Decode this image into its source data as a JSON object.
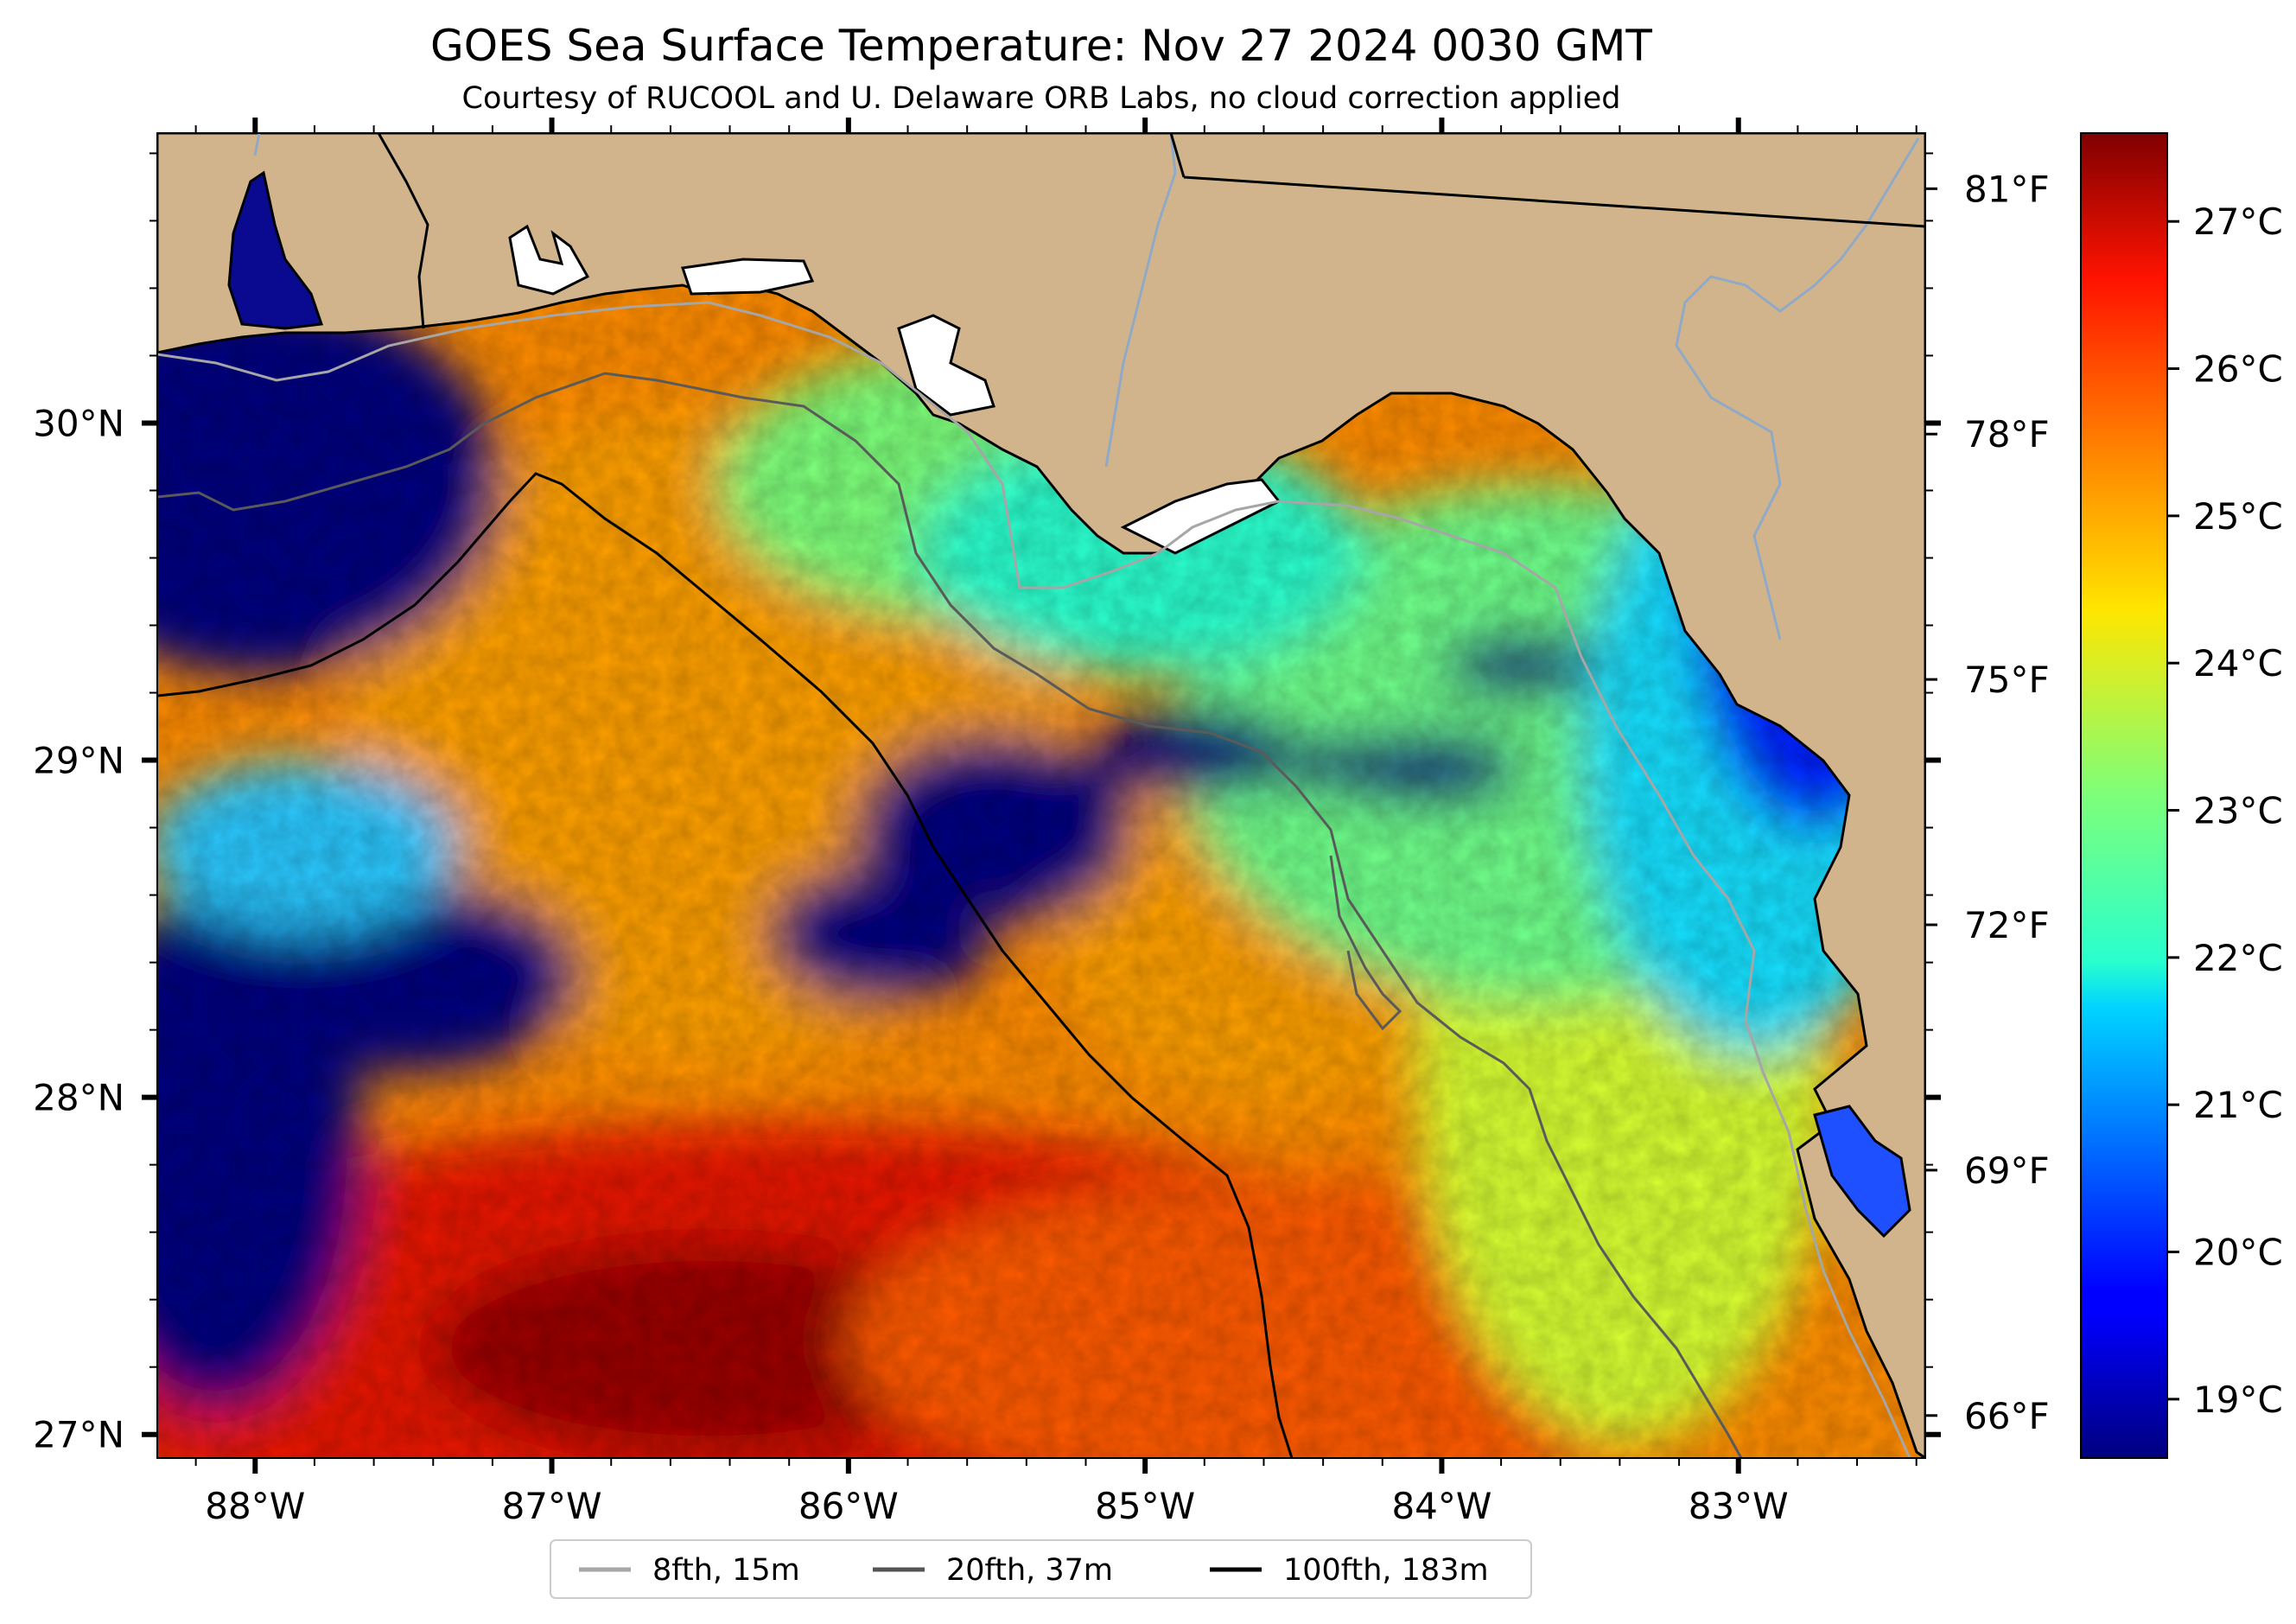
{
  "title": "GOES Sea Surface Temperature: Nov 27 2024 0030 GMT",
  "subtitle": "Courtesy of RUCOOL and U. Delaware ORB Labs, no cloud correction applied",
  "map": {
    "extent": {
      "lon_min": -88.33,
      "lon_max": -82.37,
      "lat_min": 26.93,
      "lat_max": 30.86
    },
    "lon_ticks": [
      {
        "value": -88,
        "label": "88°W"
      },
      {
        "value": -87,
        "label": "87°W"
      },
      {
        "value": -86,
        "label": "86°W"
      },
      {
        "value": -85,
        "label": "85°W"
      },
      {
        "value": -84,
        "label": "84°W"
      },
      {
        "value": -83,
        "label": "83°W"
      }
    ],
    "lat_ticks": [
      {
        "value": 30,
        "label": "30°N"
      },
      {
        "value": 29,
        "label": "29°N"
      },
      {
        "value": 28,
        "label": "28°N"
      },
      {
        "value": 27,
        "label": "27°N"
      }
    ],
    "land_color": "#d2b48c",
    "coast_color": "#000000"
  },
  "colorbar": {
    "colormap": "jet",
    "vmin_c": 18.6,
    "vmax_c": 27.6,
    "celsius_ticks": [
      {
        "value": 19,
        "label": "19°C"
      },
      {
        "value": 20,
        "label": "20°C"
      },
      {
        "value": 21,
        "label": "21°C"
      },
      {
        "value": 22,
        "label": "22°C"
      },
      {
        "value": 23,
        "label": "23°C"
      },
      {
        "value": 24,
        "label": "24°C"
      },
      {
        "value": 25,
        "label": "25°C"
      },
      {
        "value": 26,
        "label": "26°C"
      },
      {
        "value": 27,
        "label": "27°C"
      }
    ],
    "fahrenheit_ticks": [
      {
        "value": 66,
        "label": "66°F"
      },
      {
        "value": 69,
        "label": "69°F"
      },
      {
        "value": 72,
        "label": "72°F"
      },
      {
        "value": 75,
        "label": "75°F"
      },
      {
        "value": 78,
        "label": "78°F"
      },
      {
        "value": 81,
        "label": "81°F"
      }
    ]
  },
  "legend": {
    "items": [
      {
        "label": "8fth, 15m",
        "color": "#a6a6a6"
      },
      {
        "label": "20fth, 37m",
        "color": "#555555"
      },
      {
        "label": "100fth, 183m",
        "color": "#000000"
      }
    ]
  }
}
